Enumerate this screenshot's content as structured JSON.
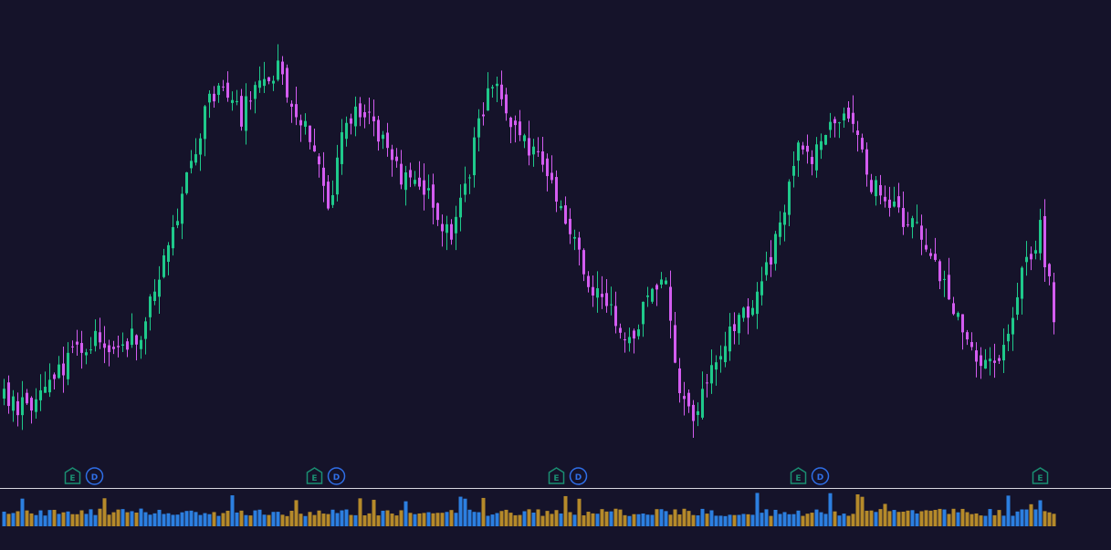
{
  "colors": {
    "background": "#15132a",
    "up": "#1fc98b",
    "down": "#d35cf0",
    "volume_up": "#2c7fe0",
    "volume_down": "#b58a2a",
    "earnings_marker": "#1a8f72",
    "dividend_marker": "#2f6fe8",
    "divider": "#d8d8e0"
  },
  "markers": {
    "earnings_label": "E",
    "dividend_label": "D",
    "earnings_icon": "earnings-flag-icon",
    "dividend_icon": "dividend-circle-icon",
    "events": [
      {
        "bar": 15,
        "types": [
          "E",
          "D"
        ]
      },
      {
        "bar": 68,
        "types": [
          "E",
          "D"
        ]
      },
      {
        "bar": 121,
        "types": [
          "E",
          "D"
        ]
      },
      {
        "bar": 174,
        "types": [
          "E",
          "D"
        ]
      },
      {
        "bar": 227,
        "types": [
          "E"
        ]
      }
    ]
  },
  "chart_data": {
    "type": "candlestick",
    "title": "",
    "xlabel": "",
    "ylabel": "",
    "grid": false,
    "legend": "none",
    "bar_count": 231,
    "close_series": [
      {
        "bar": 0,
        "close": 12.0
      },
      {
        "bar": 5,
        "close": 9.5
      },
      {
        "bar": 10,
        "close": 14.5
      },
      {
        "bar": 15,
        "close": 21.5
      },
      {
        "bar": 20,
        "close": 25.5
      },
      {
        "bar": 25,
        "close": 24.5
      },
      {
        "bar": 30,
        "close": 26.5
      },
      {
        "bar": 35,
        "close": 45.0
      },
      {
        "bar": 40,
        "close": 61.0
      },
      {
        "bar": 45,
        "close": 80.0
      },
      {
        "bar": 48,
        "close": 84.0
      },
      {
        "bar": 52,
        "close": 76.0
      },
      {
        "bar": 56,
        "close": 85.0
      },
      {
        "bar": 60,
        "close": 87.0
      },
      {
        "bar": 64,
        "close": 78.0
      },
      {
        "bar": 68,
        "close": 70.0
      },
      {
        "bar": 71,
        "close": 55.0
      },
      {
        "bar": 75,
        "close": 76.0
      },
      {
        "bar": 79,
        "close": 77.0
      },
      {
        "bar": 83,
        "close": 70.0
      },
      {
        "bar": 87,
        "close": 62.0
      },
      {
        "bar": 91,
        "close": 62.0
      },
      {
        "bar": 95,
        "close": 53.0
      },
      {
        "bar": 98,
        "close": 48.0
      },
      {
        "bar": 102,
        "close": 64.0
      },
      {
        "bar": 106,
        "close": 83.0
      },
      {
        "bar": 109,
        "close": 80.0
      },
      {
        "bar": 113,
        "close": 72.0
      },
      {
        "bar": 117,
        "close": 66.0
      },
      {
        "bar": 121,
        "close": 57.0
      },
      {
        "bar": 125,
        "close": 48.0
      },
      {
        "bar": 129,
        "close": 36.0
      },
      {
        "bar": 133,
        "close": 31.0
      },
      {
        "bar": 137,
        "close": 25.0
      },
      {
        "bar": 141,
        "close": 35.0
      },
      {
        "bar": 145,
        "close": 37.0
      },
      {
        "bar": 148,
        "close": 15.0
      },
      {
        "bar": 151,
        "close": 8.0
      },
      {
        "bar": 155,
        "close": 20.0
      },
      {
        "bar": 160,
        "close": 28.0
      },
      {
        "bar": 165,
        "close": 35.0
      },
      {
        "bar": 170,
        "close": 50.0
      },
      {
        "bar": 174,
        "close": 68.0
      },
      {
        "bar": 177,
        "close": 67.0
      },
      {
        "bar": 180,
        "close": 74.0
      },
      {
        "bar": 183,
        "close": 77.0
      },
      {
        "bar": 186,
        "close": 72.0
      },
      {
        "bar": 190,
        "close": 61.0
      },
      {
        "bar": 194,
        "close": 57.0
      },
      {
        "bar": 198,
        "close": 52.0
      },
      {
        "bar": 202,
        "close": 47.0
      },
      {
        "bar": 205,
        "close": 41.0
      },
      {
        "bar": 209,
        "close": 30.0
      },
      {
        "bar": 212,
        "close": 24.0
      },
      {
        "bar": 215,
        "close": 20.0
      },
      {
        "bar": 218,
        "close": 22.0
      },
      {
        "bar": 221,
        "close": 30.0
      },
      {
        "bar": 224,
        "close": 44.0
      },
      {
        "bar": 227,
        "close": 50.0
      },
      {
        "bar": 229,
        "close": 38.0
      },
      {
        "bar": 230,
        "close": 29.0
      }
    ],
    "y_range": [
      0,
      92
    ],
    "volume_range": [
      0,
      40
    ]
  }
}
